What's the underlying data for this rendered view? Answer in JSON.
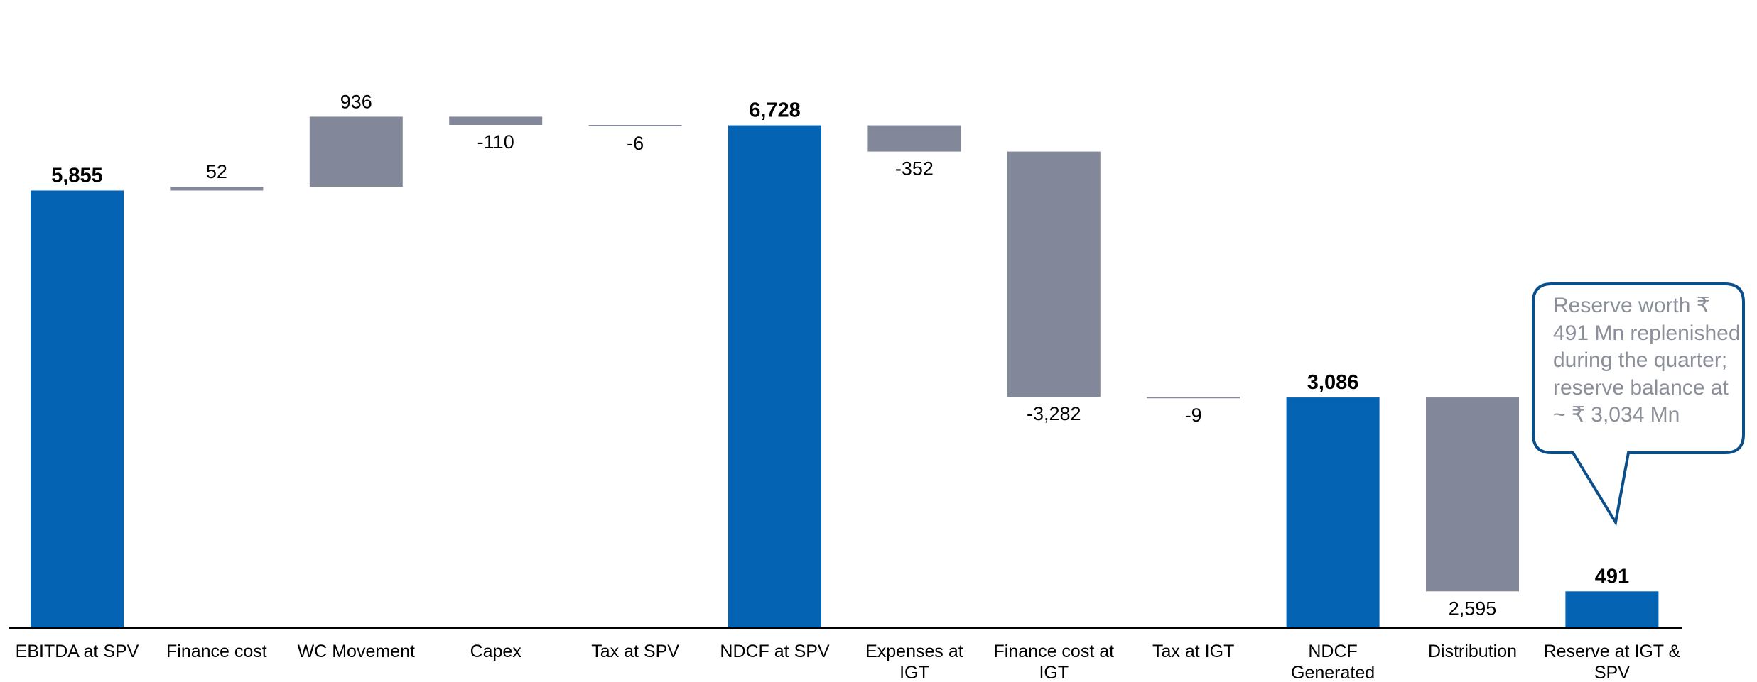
{
  "chart_data": {
    "type": "bar",
    "subtype": "waterfall",
    "title": "",
    "xlabel": "",
    "ylabel": "",
    "grid": false,
    "legend": "none",
    "categories": [
      "EBITDA at SPV",
      "Finance cost",
      "WC Movement",
      "Capex",
      "Tax at SPV",
      "NDCF at SPV",
      "Expenses at IGT",
      "Finance cost at IGT",
      "Tax at IGT",
      "NDCF Generated",
      "Distribution",
      "Reserve at IGT & SPV"
    ],
    "values": [
      5855,
      52,
      936,
      -110,
      -6,
      6728,
      -352,
      -3282,
      -9,
      3086,
      -2595,
      491
    ],
    "value_labels": [
      "5,855",
      "52",
      "936",
      "-110",
      "-6",
      "6,728",
      "-352",
      "-3,282",
      "-9",
      "3,086",
      "2,595",
      "491"
    ],
    "is_total": [
      true,
      false,
      false,
      false,
      false,
      true,
      false,
      false,
      false,
      true,
      false,
      true
    ],
    "ylim": [
      0,
      7000
    ],
    "colors": {
      "total": "#0563b4",
      "delta": "#828899",
      "callout_border": "#0b4f8a",
      "callout_text": "#8a8f99"
    },
    "callout": "Reserve worth ₹ 491 Mn replenished during the quarter; reserve balance at ~ ₹ 3,034 Mn"
  }
}
